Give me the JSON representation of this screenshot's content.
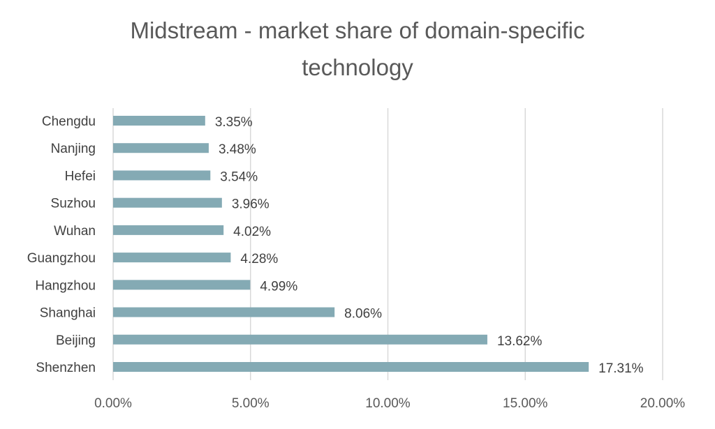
{
  "chart_data": {
    "type": "bar",
    "orientation": "horizontal",
    "title": "Midstream - market share of domain-specific technology",
    "title_lines": [
      "Midstream - market share of domain-specific",
      "technology"
    ],
    "categories": [
      "Chengdu",
      "Nanjing",
      "Hefei",
      "Suzhou",
      "Wuhan",
      "Guangzhou",
      "Hangzhou",
      "Shanghai",
      "Beijing",
      "Shenzhen"
    ],
    "values": [
      3.35,
      3.48,
      3.54,
      3.96,
      4.02,
      4.28,
      4.99,
      8.06,
      13.62,
      17.31
    ],
    "data_labels": [
      "3.35%",
      "3.48%",
      "3.54%",
      "3.96%",
      "4.02%",
      "4.28%",
      "4.99%",
      "8.06%",
      "13.62%",
      "17.31%"
    ],
    "xlim": [
      0,
      20
    ],
    "xticks": [
      0,
      5,
      10,
      15,
      20
    ],
    "xtick_labels": [
      "0.00%",
      "5.00%",
      "10.00%",
      "15.00%",
      "20.00%"
    ],
    "xlabel": "",
    "ylabel": "",
    "grid": "vertical",
    "legend": "none",
    "bar_color": "#84aab4"
  }
}
